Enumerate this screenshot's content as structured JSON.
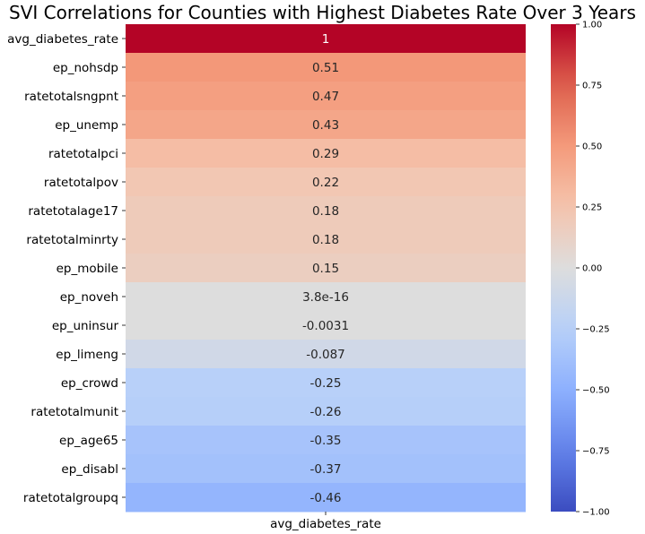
{
  "chart_data": {
    "type": "heatmap",
    "title": "SVI Correlations for Counties with Highest Diabetes Rate Over 3 Years",
    "columns": [
      "avg_diabetes_rate"
    ],
    "rows": [
      "avg_diabetes_rate",
      "ep_nohsdp",
      "ratetotalsngpnt",
      "ep_unemp",
      "ratetotalpci",
      "ratetotalpov",
      "ratetotalage17",
      "ratetotalminrty",
      "ep_mobile",
      "ep_noveh",
      "ep_uninsur",
      "ep_limeng",
      "ep_crowd",
      "ratetotalmunit",
      "ep_age65",
      "ep_disabl",
      "ratetotalgroupq"
    ],
    "values": [
      1,
      0.51,
      0.47,
      0.43,
      0.29,
      0.22,
      0.18,
      0.18,
      0.15,
      3.8e-16,
      -0.0031,
      -0.087,
      -0.25,
      -0.26,
      -0.35,
      -0.37,
      -0.46
    ],
    "annotations": [
      "1",
      "0.51",
      "0.47",
      "0.43",
      "0.29",
      "0.22",
      "0.18",
      "0.18",
      "0.15",
      "3.8e-16",
      "-0.0031",
      "-0.087",
      "-0.25",
      "-0.26",
      "-0.35",
      "-0.37",
      "-0.46"
    ],
    "colormap": "coolwarm",
    "colorbar": {
      "range": [
        -1.0,
        1.0
      ],
      "ticks": [
        1.0,
        0.75,
        0.5,
        0.25,
        0.0,
        -0.25,
        -0.5,
        -0.75,
        -1.0
      ],
      "tick_labels": [
        "1.00",
        "0.75",
        "0.50",
        "0.25",
        "0.00",
        "−0.25",
        "−0.50",
        "−0.75",
        "−1.00"
      ]
    },
    "xlabel": "avg_diabetes_rate"
  }
}
